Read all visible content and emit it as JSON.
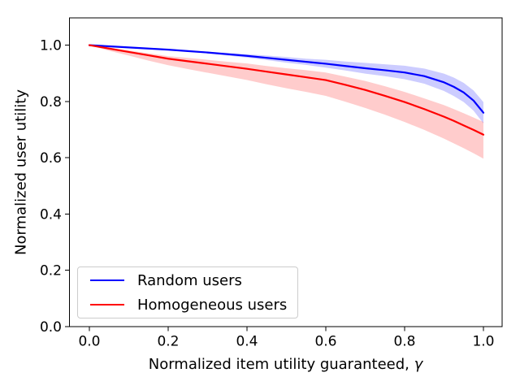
{
  "figure": {
    "background": "#ffffff",
    "frame_color": "#000000",
    "tick_color": "#000000",
    "text_color": "#000000",
    "legend_border_color": "#cccccc"
  },
  "chart_data": {
    "type": "line",
    "title": "",
    "xlabel_prefix": "Normalized item utility guaranteed, ",
    "xlabel_symbol": "γ",
    "ylabel": "Normalized user utility",
    "xlim": [
      -0.0505,
      1.0475
    ],
    "ylim": [
      0.0,
      1.097
    ],
    "grid": false,
    "xticks": [
      0.0,
      0.2,
      0.4,
      0.6,
      0.8,
      1.0
    ],
    "xtick_labels": [
      "0.0",
      "0.2",
      "0.4",
      "0.6",
      "0.8",
      "1.0"
    ],
    "yticks": [
      0.0,
      0.2,
      0.4,
      0.6,
      0.8,
      1.0
    ],
    "ytick_labels": [
      "0.0",
      "0.2",
      "0.4",
      "0.6",
      "0.8",
      "1.0"
    ],
    "legend": {
      "position": "lower left",
      "entries": [
        {
          "label": "Random users",
          "color": "#0000ff"
        },
        {
          "label": "Homogeneous users",
          "color": "#ff0000"
        }
      ]
    },
    "x": [
      0.0,
      0.05,
      0.1,
      0.15,
      0.2,
      0.25,
      0.3,
      0.35,
      0.4,
      0.45,
      0.5,
      0.55,
      0.6,
      0.65,
      0.7,
      0.75,
      0.8,
      0.85,
      0.9,
      0.925,
      0.95,
      0.975,
      1.0
    ],
    "series": [
      {
        "name": "Random users",
        "color": "#0000ff",
        "line_width": 2.2,
        "band_alpha": 0.2,
        "values": [
          1.0,
          0.996,
          0.992,
          0.988,
          0.984,
          0.979,
          0.974,
          0.968,
          0.962,
          0.955,
          0.948,
          0.941,
          0.934,
          0.926,
          0.918,
          0.911,
          0.903,
          0.89,
          0.868,
          0.852,
          0.832,
          0.803,
          0.76
        ],
        "band_upper": [
          1.0,
          0.996,
          0.992,
          0.989,
          0.986,
          0.981,
          0.977,
          0.973,
          0.968,
          0.963,
          0.958,
          0.952,
          0.948,
          0.942,
          0.937,
          0.932,
          0.927,
          0.917,
          0.899,
          0.885,
          0.866,
          0.839,
          0.798
        ],
        "band_lower": [
          1.0,
          0.996,
          0.992,
          0.987,
          0.982,
          0.977,
          0.971,
          0.963,
          0.956,
          0.947,
          0.938,
          0.93,
          0.92,
          0.91,
          0.899,
          0.89,
          0.879,
          0.863,
          0.837,
          0.819,
          0.798,
          0.767,
          0.722
        ]
      },
      {
        "name": "Homogeneous users",
        "color": "#ff0000",
        "line_width": 2.2,
        "band_alpha": 0.2,
        "values": [
          1.0,
          0.988,
          0.976,
          0.964,
          0.952,
          0.943,
          0.934,
          0.925,
          0.916,
          0.906,
          0.896,
          0.886,
          0.876,
          0.859,
          0.841,
          0.82,
          0.798,
          0.773,
          0.746,
          0.731,
          0.715,
          0.699,
          0.682
        ],
        "band_upper": [
          1.0,
          0.99,
          0.981,
          0.971,
          0.961,
          0.955,
          0.948,
          0.941,
          0.935,
          0.926,
          0.918,
          0.911,
          0.903,
          0.888,
          0.873,
          0.854,
          0.834,
          0.811,
          0.787,
          0.773,
          0.758,
          0.743,
          0.727
        ],
        "band_lower": [
          1.0,
          0.98,
          0.963,
          0.945,
          0.929,
          0.915,
          0.902,
          0.889,
          0.876,
          0.861,
          0.847,
          0.834,
          0.82,
          0.799,
          0.777,
          0.753,
          0.727,
          0.699,
          0.668,
          0.651,
          0.634,
          0.616,
          0.597
        ]
      }
    ]
  }
}
